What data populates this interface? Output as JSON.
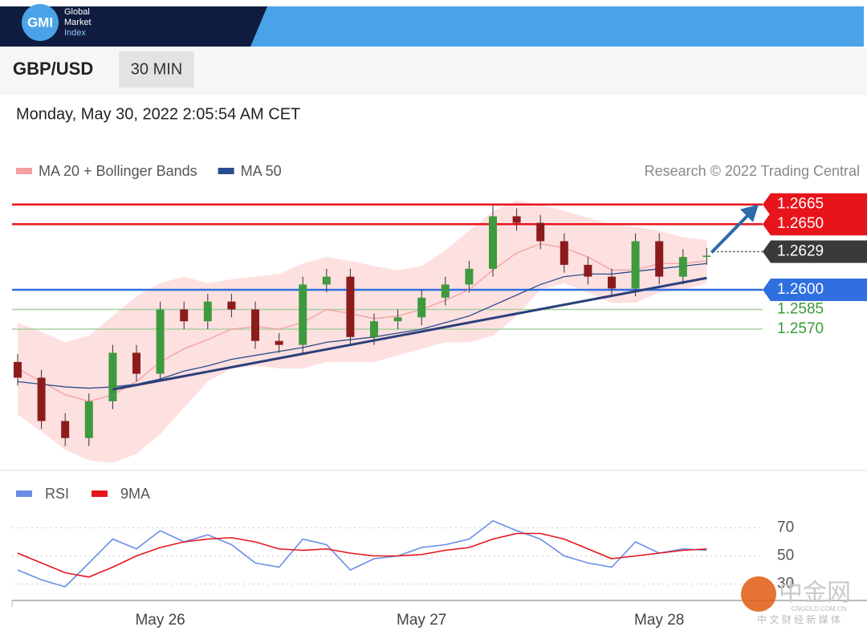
{
  "header": {
    "brand": "GMI",
    "brand_lines": [
      "Global",
      "Market",
      "Index"
    ],
    "symbol": "GBP/USD",
    "timeframe": "30 MIN",
    "timestamp": "Monday, May 30, 2022 2:05:54 AM CET"
  },
  "watermark": {
    "name": "中金网",
    "domain": "CNGOLD.COM.CN",
    "tagline": "中 文 财 经 新 媒 体"
  },
  "chart_data": [
    {
      "type": "candlestick",
      "source": "Research © 2022 Trading Central",
      "categories": [
        null,
        null,
        null,
        null,
        null,
        null,
        "May 26",
        null,
        null,
        null,
        null,
        null,
        null,
        null,
        null,
        null,
        null,
        "May 27",
        null,
        null,
        null,
        null,
        null,
        null,
        null,
        null,
        null,
        "May 28",
        null,
        null
      ],
      "open": [
        1.2545,
        1.2533,
        1.25,
        1.2487,
        1.2515,
        1.2552,
        1.2536,
        1.2585,
        1.2576,
        1.2591,
        1.2585,
        1.2561,
        1.2558,
        1.2604,
        1.261,
        1.2564,
        1.2576,
        1.2579,
        1.2594,
        1.2604,
        1.2616,
        1.2656,
        1.2651,
        1.2637,
        1.2619,
        1.261,
        1.2601,
        1.2637,
        1.261,
        1.2625
      ],
      "high": [
        1.2551,
        1.2539,
        1.2506,
        1.2521,
        1.2558,
        1.2558,
        1.2591,
        1.2591,
        1.2597,
        1.2597,
        1.2591,
        1.2567,
        1.261,
        1.2616,
        1.2616,
        1.2582,
        1.2585,
        1.26,
        1.261,
        1.2622,
        1.2665,
        1.2662,
        1.2657,
        1.2643,
        1.2625,
        1.2616,
        1.2643,
        1.2643,
        1.2631,
        1.2632
      ],
      "low": [
        1.2527,
        1.2494,
        1.2481,
        1.2481,
        1.2509,
        1.253,
        1.253,
        1.257,
        1.257,
        1.2579,
        1.2555,
        1.2552,
        1.2552,
        1.2598,
        1.2558,
        1.2558,
        1.257,
        1.2573,
        1.2588,
        1.2598,
        1.261,
        1.2645,
        1.2631,
        1.2613,
        1.2604,
        1.2595,
        1.2595,
        1.2604,
        1.2604,
        1.2619
      ],
      "close": [
        1.2533,
        1.25,
        1.2487,
        1.2515,
        1.2552,
        1.2536,
        1.2585,
        1.2576,
        1.2591,
        1.2585,
        1.2561,
        1.2558,
        1.2604,
        1.261,
        1.2564,
        1.2576,
        1.2579,
        1.2594,
        1.2604,
        1.2616,
        1.2656,
        1.2651,
        1.2637,
        1.2619,
        1.261,
        1.2601,
        1.2637,
        1.261,
        1.2625,
        1.2626
      ],
      "up_color": "#3e9a3e",
      "down_color": "#8c1c1c",
      "series": [
        {
          "name": "MA 20 + Bollinger Bands",
          "color": "#f4a0a0",
          "band_color": "#fde0e0",
          "values": [
            1.254,
            1.253,
            1.252,
            1.2515,
            1.252,
            1.253,
            1.2545,
            1.2555,
            1.2562,
            1.257,
            1.2572,
            1.257,
            1.2575,
            1.2585,
            1.2582,
            1.2578,
            1.258,
            1.2585,
            1.2592,
            1.26,
            1.2615,
            1.2628,
            1.2635,
            1.2632,
            1.2625,
            1.2615,
            1.2615,
            1.262,
            1.262,
            1.2622
          ],
          "upper": [
            1.2575,
            1.2568,
            1.256,
            1.2565,
            1.258,
            1.2595,
            1.2605,
            1.261,
            1.2605,
            1.2608,
            1.261,
            1.2612,
            1.262,
            1.2625,
            1.2622,
            1.2618,
            1.2615,
            1.2618,
            1.263,
            1.2645,
            1.266,
            1.2668,
            1.2665,
            1.266,
            1.2655,
            1.265,
            1.2648,
            1.2645,
            1.264,
            1.2638
          ],
          "lower": [
            1.2505,
            1.2492,
            1.2478,
            1.247,
            1.2468,
            1.2475,
            1.249,
            1.251,
            1.253,
            1.254,
            1.2542,
            1.254,
            1.254,
            1.2545,
            1.2545,
            1.2545,
            1.255,
            1.2555,
            1.256,
            1.256,
            1.2565,
            1.258,
            1.26,
            1.2605,
            1.2598,
            1.259,
            1.259,
            1.2598,
            1.26,
            1.2605
          ]
        },
        {
          "name": "MA 50",
          "color": "#2b4c8c",
          "values": [
            1.253,
            1.2528,
            1.2526,
            1.2525,
            1.2526,
            1.2528,
            1.2532,
            1.2538,
            1.2542,
            1.2547,
            1.255,
            1.2553,
            1.2556,
            1.256,
            1.2562,
            1.2564,
            1.2567,
            1.257,
            1.2575,
            1.258,
            1.2588,
            1.2596,
            1.2604,
            1.261,
            1.2612,
            1.2612,
            1.2614,
            1.2616,
            1.2618,
            1.262
          ]
        }
      ],
      "trend_line": {
        "x": [
          4,
          29
        ],
        "y": [
          1.2524,
          1.2609
        ],
        "color": "#2b3f7a"
      },
      "levels": [
        {
          "value": 1.2665,
          "color": "#e8141b",
          "boxed": true
        },
        {
          "value": 1.265,
          "label": "1.2650",
          "color": "#e8141b",
          "boxed": true
        },
        {
          "value": 1.2629,
          "color": "#3a3a3a",
          "boxed": true,
          "dotted": true
        },
        {
          "value": 1.26,
          "label": "1.2600",
          "color": "#2f6fe0",
          "boxed": true
        },
        {
          "value": 1.2585,
          "color": "#a8cfa0",
          "text_color": "#3a9a3a",
          "boxed": false
        },
        {
          "value": 1.257,
          "label": "1.2570",
          "color": "#a8cfa0",
          "text_color": "#3a9a3a",
          "boxed": false
        }
      ],
      "ylim": [
        1.2466,
        1.2674
      ]
    },
    {
      "type": "line",
      "series": [
        {
          "name": "RSI",
          "color": "#6a8de6",
          "values": [
            40,
            33,
            28,
            45,
            62,
            55,
            68,
            60,
            65,
            58,
            45,
            42,
            62,
            58,
            40,
            48,
            50,
            56,
            58,
            62,
            75,
            68,
            62,
            50,
            45,
            42,
            60,
            52,
            55,
            54
          ]
        },
        {
          "name": "9MA",
          "color": "#e8141b",
          "values": [
            52,
            45,
            38,
            35,
            42,
            50,
            56,
            60,
            62,
            63,
            60,
            55,
            54,
            55,
            52,
            50,
            50,
            51,
            54,
            56,
            62,
            66,
            66,
            62,
            55,
            48,
            50,
            52,
            54,
            55
          ]
        }
      ],
      "ylim": [
        20,
        80
      ],
      "yticks": [
        30,
        50,
        70
      ]
    }
  ]
}
